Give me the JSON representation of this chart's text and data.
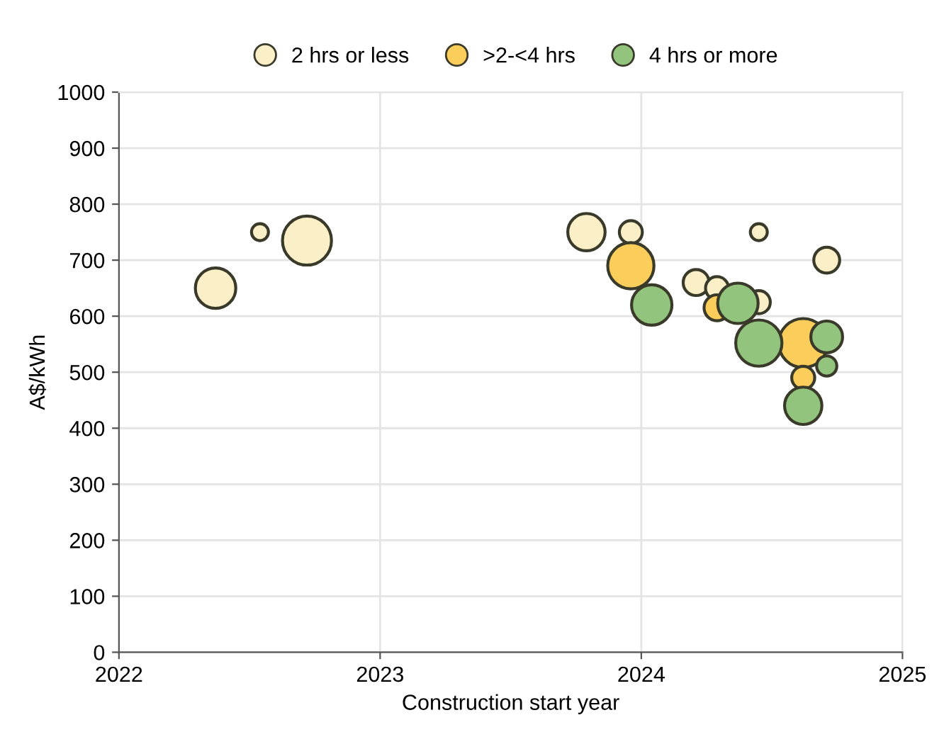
{
  "chart_data": {
    "type": "bubble",
    "xlabel": "Construction start year",
    "ylabel": "A$/kWh",
    "xlim": [
      2022,
      2025
    ],
    "xticks": [
      2022,
      2023,
      2024,
      2025
    ],
    "ylim": [
      0,
      1000
    ],
    "yticks": [
      0,
      100,
      200,
      300,
      400,
      500,
      600,
      700,
      800,
      900,
      1000
    ],
    "grid": true,
    "legend": "top",
    "marker": "circle",
    "series": [
      {
        "name": "2 hrs or less",
        "color": "#fbefc8",
        "x": [
          2022.37,
          2022.54,
          2022.72,
          2023.79,
          2023.96,
          2024.21,
          2024.29,
          2024.45,
          2024.45,
          2024.71
        ],
        "values": [
          650,
          750,
          735,
          750,
          750,
          660,
          650,
          750,
          625,
          700
        ],
        "sizes": [
          0.68,
          0.12,
          1,
          0.58,
          0.22,
          0.28,
          0.22,
          0.12,
          0.22,
          0.28
        ]
      },
      {
        "name": ">2-<4 hrs",
        "color": "#fbcd5a",
        "x": [
          2023.96,
          2024.29,
          2024.62,
          2024.62
        ],
        "values": [
          690,
          615,
          552,
          490
        ],
        "sizes": [
          0.89,
          0.28,
          1,
          0.22
        ]
      },
      {
        "name": "4 hrs or more",
        "color": "#93c47d",
        "x": [
          2024.04,
          2024.37,
          2024.45,
          2024.71,
          2024.71,
          2024.62
        ],
        "values": [
          620,
          623,
          552,
          563,
          511,
          440
        ],
        "sizes": [
          0.68,
          0.68,
          0.89,
          0.42,
          0.17,
          0.58
        ]
      }
    ]
  }
}
